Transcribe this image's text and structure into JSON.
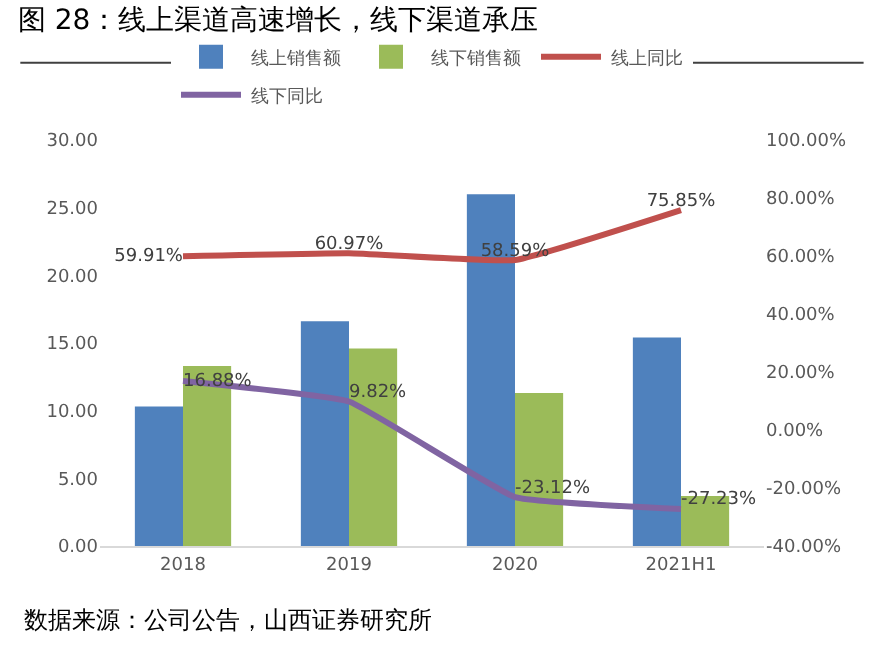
{
  "chart_data": {
    "type": "bar",
    "title": "图 28：线上渠道高速增长，线下渠道承压",
    "categories": [
      "2018",
      "2019",
      "2020",
      "2021H1"
    ],
    "series": [
      {
        "name": "线上销售额",
        "color": "#4f81bd",
        "values": [
          10.3,
          16.6,
          26.0,
          15.4
        ]
      },
      {
        "name": "线下销售额",
        "color": "#9bbb59",
        "values": [
          13.3,
          14.6,
          11.3,
          3.7
        ]
      },
      {
        "name": "线上同比",
        "type": "line",
        "axis": "y2",
        "color": "#c0504d",
        "values": [
          59.91,
          60.97,
          58.59,
          75.85
        ],
        "value_labels": [
          "59.91%",
          "60.97%",
          "58.59%",
          "75.85%"
        ]
      },
      {
        "name": "线下同比",
        "type": "line",
        "axis": "y2",
        "color": "#8064a2",
        "values": [
          16.88,
          9.82,
          -23.12,
          -27.23
        ],
        "value_labels": [
          "16.88%",
          "9.82%",
          "-23.12%",
          "-27.23%"
        ]
      }
    ],
    "ylim": [
      0,
      30
    ],
    "yticks": [
      {
        "value": 0,
        "label": "0.00"
      },
      {
        "value": 5,
        "label": "5.00"
      },
      {
        "value": 10,
        "label": "10.00"
      },
      {
        "value": 15,
        "label": "15.00"
      },
      {
        "value": 20,
        "label": "20.00"
      },
      {
        "value": 25,
        "label": "25.00"
      },
      {
        "value": 30,
        "label": "30.00"
      }
    ],
    "y2lim": [
      -40,
      100
    ],
    "y2ticks": [
      {
        "value": -40,
        "label": "-40.00%"
      },
      {
        "value": -20,
        "label": "-20.00%"
      },
      {
        "value": 0,
        "label": "0.00%"
      },
      {
        "value": 20,
        "label": "20.00%"
      },
      {
        "value": 40,
        "label": "40.00%"
      },
      {
        "value": 60,
        "label": "60.00%"
      },
      {
        "value": 80,
        "label": "80.00%"
      },
      {
        "value": 100,
        "label": "100.00%"
      }
    ],
    "legend": "top",
    "grid": false,
    "annotations": [
      "数据来源：公司公告，山西证券研究所"
    ]
  }
}
